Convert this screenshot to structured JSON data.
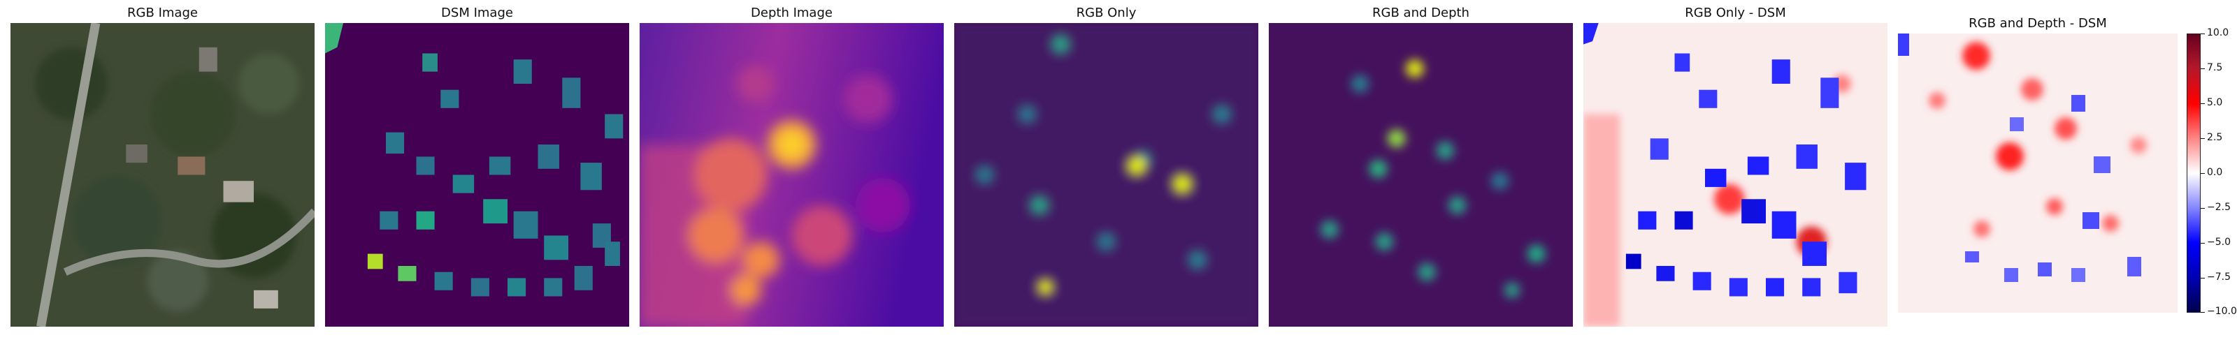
{
  "panels": [
    {
      "title": "RGB Image"
    },
    {
      "title": "DSM Image"
    },
    {
      "title": "Depth Image"
    },
    {
      "title": "RGB Only"
    },
    {
      "title": "RGB and Depth"
    },
    {
      "title": "RGB Only - DSM"
    },
    {
      "title": "RGB and Depth - DSM"
    }
  ],
  "colorbar": {
    "ticks": [
      "10.0",
      "7.5",
      "5.0",
      "2.5",
      "0.0",
      "−2.5",
      "−5.0",
      "−7.5",
      "−10.0"
    ],
    "range": [
      -10,
      10
    ],
    "colors": {
      "top": "#67001f",
      "upper": "#ff0000",
      "mid": "#ffffff",
      "lower": "#0000ff",
      "bottom": "#00004d"
    }
  }
}
